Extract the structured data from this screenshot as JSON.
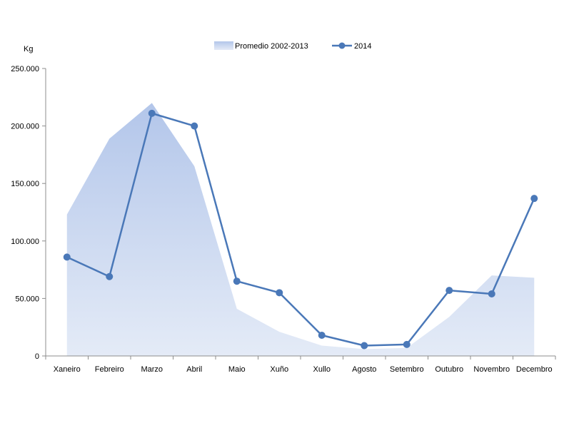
{
  "chart_data": {
    "type": "line",
    "title": "",
    "ylabel": "Kg",
    "xlabel": "",
    "categories": [
      "Xaneiro",
      "Febreiro",
      "Marzo",
      "Abril",
      "Maio",
      "Xuño",
      "Xullo",
      "Agosto",
      "Setembro",
      "Outubro",
      "Novembro",
      "Decembro"
    ],
    "ylim": [
      0,
      250000
    ],
    "yticks": [
      0,
      50000,
      100000,
      150000,
      200000,
      250000
    ],
    "ytick_labels": [
      "0",
      "50.000",
      "100.000",
      "150.000",
      "200.000",
      "250.000"
    ],
    "grid": false,
    "legend_position": "top-center",
    "series": [
      {
        "name": "Promedio 2002-2013",
        "type": "area",
        "color": "#c0d0ec",
        "values": [
          123000,
          189000,
          220000,
          165000,
          41000,
          21000,
          9000,
          6000,
          7000,
          34000,
          70000,
          68000
        ]
      },
      {
        "name": "2014",
        "type": "line",
        "color": "#4a78b8",
        "values": [
          86000,
          69000,
          211000,
          200000,
          65000,
          55000,
          18000,
          9000,
          10000,
          57000,
          54000,
          137000
        ]
      }
    ]
  }
}
